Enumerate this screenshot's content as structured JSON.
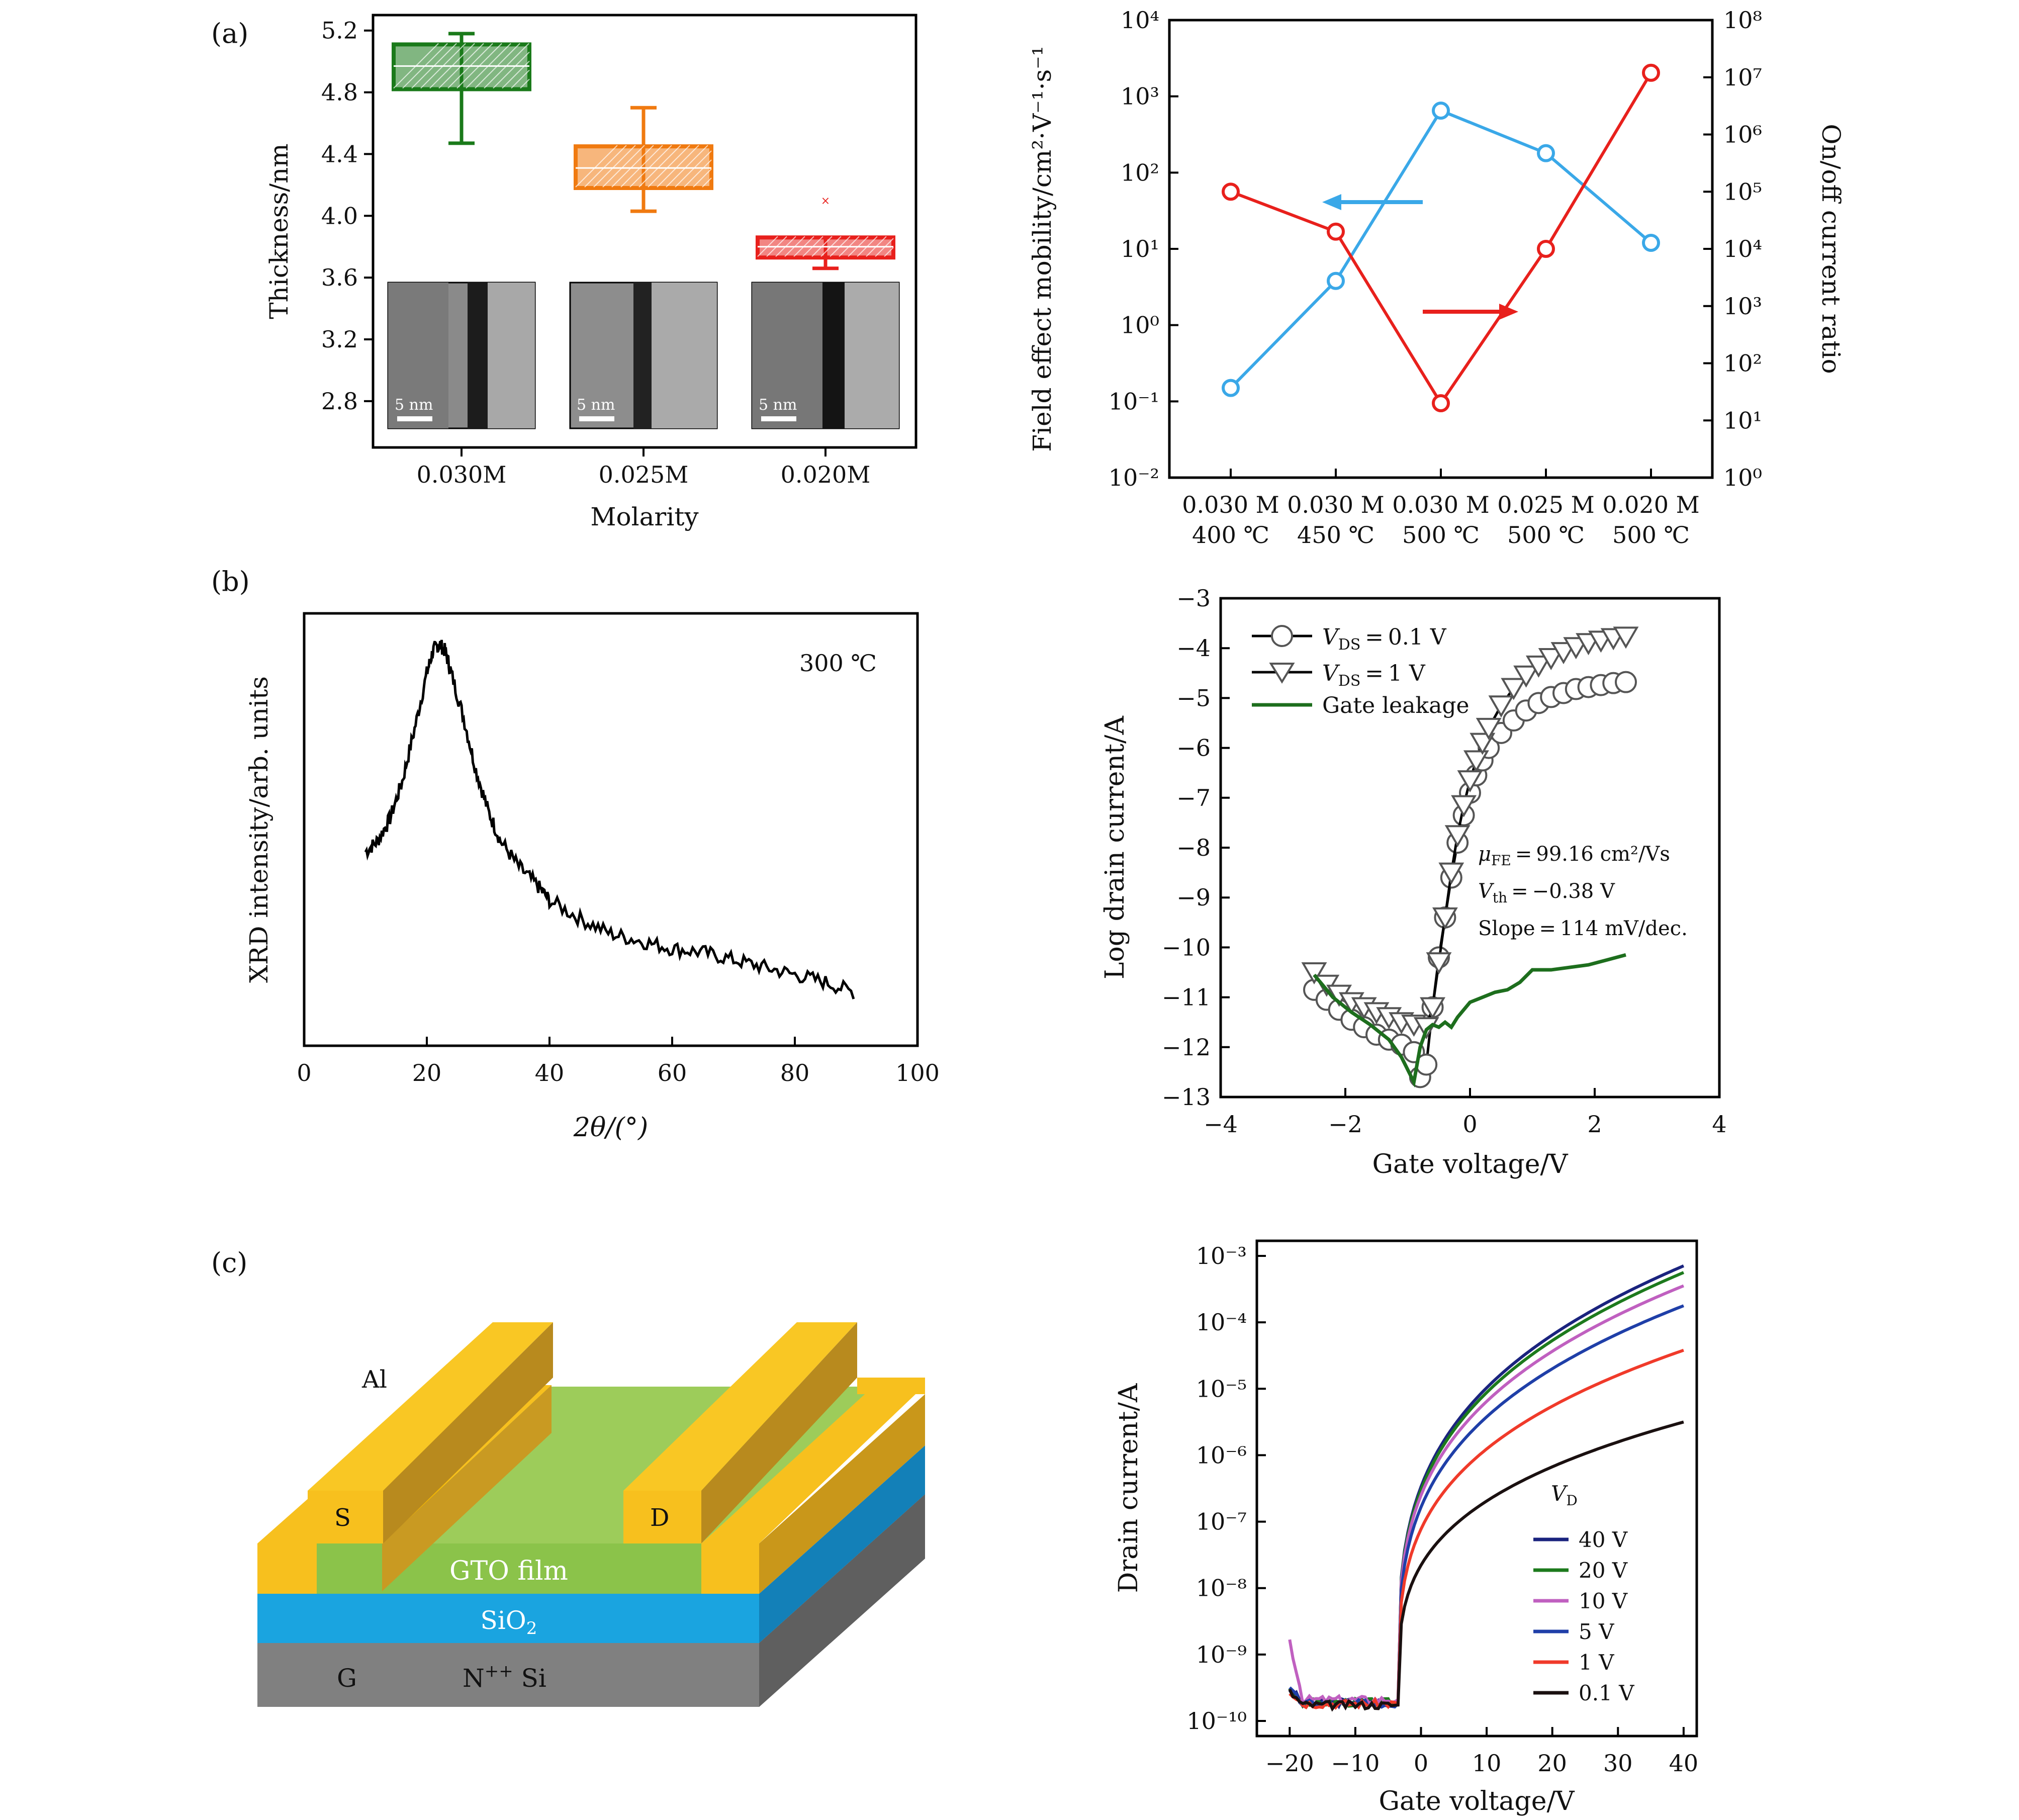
{
  "panels": {
    "a": "(a)",
    "b": "(b)",
    "c": "(c)"
  },
  "colors": {
    "green": "#1a7a1a",
    "orange": "#f07a10",
    "red": "#e8201c",
    "blue": "#3aa8e8",
    "dark_green": "#1d6e1d",
    "gold": "#f7c01e",
    "gto": "#9dcc5a",
    "sio2": "#1aa4e0",
    "si": "#808080"
  },
  "chart_data": [
    {
      "id": "a-left",
      "type": "box",
      "xlabel": "Molarity",
      "ylabel": "Thickness/nm",
      "ylim": [
        2.5,
        5.3
      ],
      "yticks": [
        "2.8",
        "3.2",
        "3.6",
        "4.0",
        "4.4",
        "4.8",
        "5.2"
      ],
      "categories": [
        "0.030M",
        "0.025M",
        "0.020M"
      ],
      "boxes": [
        {
          "category": "0.030M",
          "min": 4.47,
          "q1": 4.82,
          "median": 4.97,
          "q3": 5.11,
          "max": 5.18,
          "color": "green"
        },
        {
          "category": "0.025M",
          "min": 4.03,
          "q1": 4.18,
          "median": 4.31,
          "q3": 4.45,
          "max": 4.7,
          "color": "orange"
        },
        {
          "category": "0.020M",
          "min": 3.66,
          "q1": 3.73,
          "median": 3.8,
          "q3": 3.86,
          "max": 3.86,
          "outlier": 4.1,
          "color": "red"
        }
      ],
      "inset_scale_labels": [
        "5 nm",
        "5 nm",
        "5 nm"
      ]
    },
    {
      "id": "a-right",
      "type": "line",
      "ylabel": "Field effect mobility/cm²·V⁻¹·s⁻¹",
      "y2label": "On/off current ratio",
      "yscale": "log",
      "ylim": [
        0.01,
        10000
      ],
      "y2lim": [
        1,
        100000000
      ],
      "yticks": [
        "10⁻²",
        "10⁻¹",
        "10⁰",
        "10¹",
        "10²",
        "10³",
        "10⁴"
      ],
      "y2ticks": [
        "10⁰",
        "10¹",
        "10²",
        "10³",
        "10⁴",
        "10⁵",
        "10⁶",
        "10⁷",
        "10⁸"
      ],
      "categories": [
        [
          "0.030 M",
          "400 ℃"
        ],
        [
          "0.030 M",
          "450 ℃"
        ],
        [
          "0.030 M",
          "500 ℃"
        ],
        [
          "0.025 M",
          "500 ℃"
        ],
        [
          "0.020 M",
          "500 ℃"
        ]
      ],
      "series": [
        {
          "axis": "left",
          "color": "blue",
          "values": [
            0.15,
            3.8,
            650,
            180,
            12
          ]
        },
        {
          "axis": "right",
          "color": "red",
          "values": [
            100000,
            20000,
            20,
            10000,
            12000000
          ]
        }
      ]
    },
    {
      "id": "b-left",
      "type": "line",
      "xlabel": "2θ/(°)",
      "ylabel": "XRD intensity/arb. units",
      "xlim": [
        0,
        100
      ],
      "xticks": [
        "0",
        "20",
        "40",
        "60",
        "80",
        "100"
      ],
      "annotation": "300 ℃",
      "series": [
        {
          "color": "black",
          "x": [
            10,
            12,
            14,
            16,
            18,
            20,
            21,
            22,
            23,
            24,
            26,
            28,
            30,
            32,
            35,
            38,
            40,
            45,
            50,
            55,
            60,
            65,
            70,
            75,
            80,
            85,
            90
          ],
          "y": [
            0.44,
            0.47,
            0.53,
            0.63,
            0.77,
            0.92,
            0.98,
            1.0,
            0.98,
            0.92,
            0.8,
            0.66,
            0.55,
            0.47,
            0.4,
            0.35,
            0.31,
            0.26,
            0.22,
            0.2,
            0.18,
            0.17,
            0.15,
            0.13,
            0.11,
            0.09,
            0.06
          ]
        }
      ]
    },
    {
      "id": "b-right",
      "type": "line",
      "xlabel": "Gate voltage/V",
      "ylabel": "Log drain current/A",
      "xlim": [
        -4,
        4
      ],
      "ylim": [
        -13,
        -3
      ],
      "xticks": [
        "−4",
        "−2",
        "0",
        "2",
        "4"
      ],
      "yticks": [
        "−13",
        "−12",
        "−11",
        "−10",
        "−9",
        "−8",
        "−7",
        "−6",
        "−5",
        "−4",
        "−3"
      ],
      "legend": [
        "V_DS = 0.1 V",
        "V_DS = 1 V",
        "Gate leakage"
      ],
      "legend_parts": [
        {
          "main": "V",
          "sub": "DS",
          "rest": " = 0.1 V"
        },
        {
          "main": "V",
          "sub": "DS",
          "rest": " = 1 V"
        },
        {
          "main": "Gate leakage",
          "sub": "",
          "rest": ""
        }
      ],
      "annotations": [
        {
          "main": "μ",
          "sub": "FE",
          "rest": " = 99.16 cm²/Vs"
        },
        {
          "main": "V",
          "sub": "th",
          "rest": " = −0.38 V"
        },
        {
          "main": "Slope = 114 mV/dec.",
          "sub": "",
          "rest": ""
        }
      ],
      "series": [
        {
          "name": "V_DS = 0.1 V",
          "marker": "circle",
          "x": [
            -2.5,
            -2.3,
            -2.1,
            -1.9,
            -1.7,
            -1.5,
            -1.3,
            -1.1,
            -0.9,
            -0.8,
            -0.7,
            -0.6,
            -0.5,
            -0.4,
            -0.3,
            -0.2,
            -0.1,
            0.0,
            0.1,
            0.2,
            0.3,
            0.5,
            0.7,
            0.9,
            1.1,
            1.3,
            1.5,
            1.7,
            1.9,
            2.1,
            2.3,
            2.5
          ],
          "y": [
            -10.85,
            -11.05,
            -11.25,
            -11.45,
            -11.6,
            -11.75,
            -11.85,
            -11.95,
            -12.1,
            -12.6,
            -12.35,
            -11.2,
            -10.2,
            -9.4,
            -8.6,
            -7.9,
            -7.35,
            -6.9,
            -6.55,
            -6.25,
            -6.0,
            -5.7,
            -5.45,
            -5.25,
            -5.1,
            -4.98,
            -4.9,
            -4.82,
            -4.78,
            -4.74,
            -4.7,
            -4.68
          ]
        },
        {
          "name": "V_DS = 1 V",
          "marker": "triangle",
          "x": [
            -2.5,
            -2.3,
            -2.1,
            -1.9,
            -1.7,
            -1.5,
            -1.3,
            -1.1,
            -0.9,
            -0.7,
            -0.6,
            -0.5,
            -0.4,
            -0.3,
            -0.2,
            -0.1,
            0.0,
            0.1,
            0.2,
            0.3,
            0.5,
            0.7,
            0.9,
            1.1,
            1.3,
            1.5,
            1.7,
            1.9,
            2.1,
            2.3,
            2.5
          ],
          "y": [
            -10.5,
            -10.75,
            -10.95,
            -11.1,
            -11.2,
            -11.3,
            -11.4,
            -11.5,
            -11.55,
            -11.6,
            -11.2,
            -10.3,
            -9.4,
            -8.5,
            -7.75,
            -7.15,
            -6.65,
            -6.25,
            -5.9,
            -5.6,
            -5.15,
            -4.8,
            -4.55,
            -4.35,
            -4.2,
            -4.08,
            -3.98,
            -3.9,
            -3.85,
            -3.8,
            -3.77
          ]
        },
        {
          "name": "Gate leakage",
          "marker": "none",
          "x": [
            -2.5,
            -2.2,
            -1.9,
            -1.6,
            -1.3,
            -1.1,
            -0.9,
            -0.8,
            -0.7,
            -0.6,
            -0.5,
            -0.4,
            -0.3,
            -0.2,
            0.0,
            0.2,
            0.4,
            0.6,
            0.8,
            1.0,
            1.3,
            1.6,
            1.9,
            2.2,
            2.5
          ],
          "y": [
            -10.55,
            -11.0,
            -11.3,
            -11.55,
            -11.85,
            -12.2,
            -12.7,
            -12.0,
            -11.65,
            -11.55,
            -11.6,
            -11.5,
            -11.6,
            -11.4,
            -11.1,
            -11.0,
            -10.9,
            -10.85,
            -10.7,
            -10.45,
            -10.45,
            -10.4,
            -10.35,
            -10.25,
            -10.15
          ]
        }
      ]
    },
    {
      "id": "c-right",
      "type": "line",
      "xlabel": "Gate voltage/V",
      "ylabel": "Drain current/A",
      "yscale": "log",
      "xlim": [
        -25,
        42
      ],
      "ylim": [
        1e-10,
        0.001
      ],
      "xticks": [
        "−20",
        "−10",
        "0",
        "10",
        "20",
        "30",
        "40"
      ],
      "yticks": [
        "10⁻¹⁰",
        "10⁻⁹",
        "10⁻⁸",
        "10⁻⁷",
        "10⁻⁶",
        "10⁻⁵",
        "10⁻⁴",
        "10⁻³"
      ],
      "legend_title_main": "V",
      "legend_title_sub": "D",
      "legend_title": "V_D",
      "series": [
        {
          "name": "40 V",
          "color": "#1a237e",
          "end": -3.15,
          "floor": -9.72
        },
        {
          "name": "20 V",
          "color": "#1d7a1d",
          "end": -3.25,
          "floor": -9.72
        },
        {
          "name": "10 V",
          "color": "#c060c0",
          "end": -3.45,
          "floor": -9.68
        },
        {
          "name": "5 V",
          "color": "#1f3fa8",
          "end": -3.75,
          "floor": -9.74
        },
        {
          "name": "1 V",
          "color": "#f03a2a",
          "end": -4.42,
          "floor": -9.74
        },
        {
          "name": "0.1 V",
          "color": "#1a1010",
          "end": -5.5,
          "floor": -9.76
        }
      ]
    },
    {
      "id": "c-left",
      "type": "diagram",
      "labels": {
        "al": "Al",
        "s": "S",
        "d": "D",
        "gto": "GTO film",
        "sio2_main": "SiO",
        "sio2_sub": "2",
        "g": "G",
        "si_main": "N",
        "si_sup": "++",
        "si_rest": " Si"
      }
    }
  ]
}
